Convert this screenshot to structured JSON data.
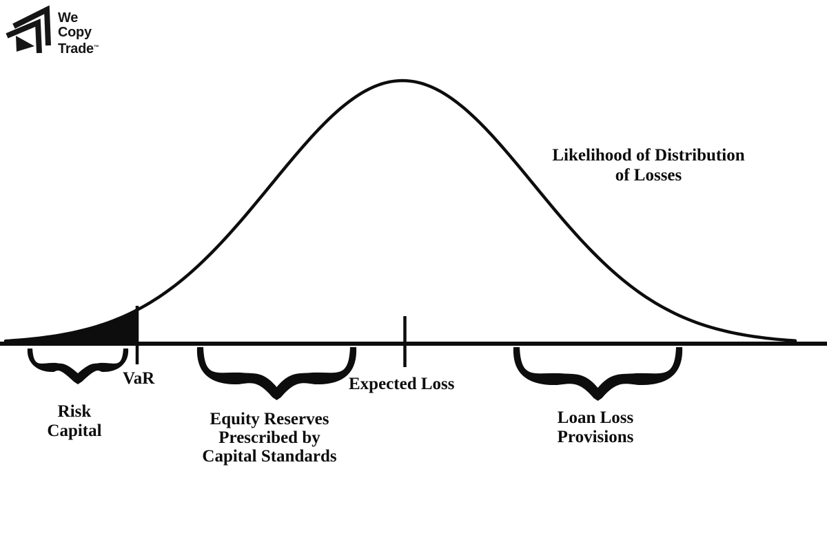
{
  "logo": {
    "word1": "We",
    "word2": "Copy",
    "word3": "Trade",
    "trademark": "™",
    "icon": "triple-arrow-logo-mark"
  },
  "diagram": {
    "curve_label": {
      "line1": "Likelihood of Distribution",
      "line2": "of Losses"
    },
    "var_label": "VaR",
    "expected_loss_label": "Expected Loss",
    "regions": {
      "risk_capital": {
        "line1": "Risk",
        "line2": "Capital"
      },
      "equity_reserves": {
        "line1": "Equity Reserves",
        "line2": "Prescribed by",
        "line3": "Capital Standards"
      },
      "loan_loss_provisions": {
        "line1": "Loan Loss",
        "line2": "Provisions"
      }
    }
  },
  "colors": {
    "ink": "#0d0d0d",
    "background": "#ffffff"
  }
}
